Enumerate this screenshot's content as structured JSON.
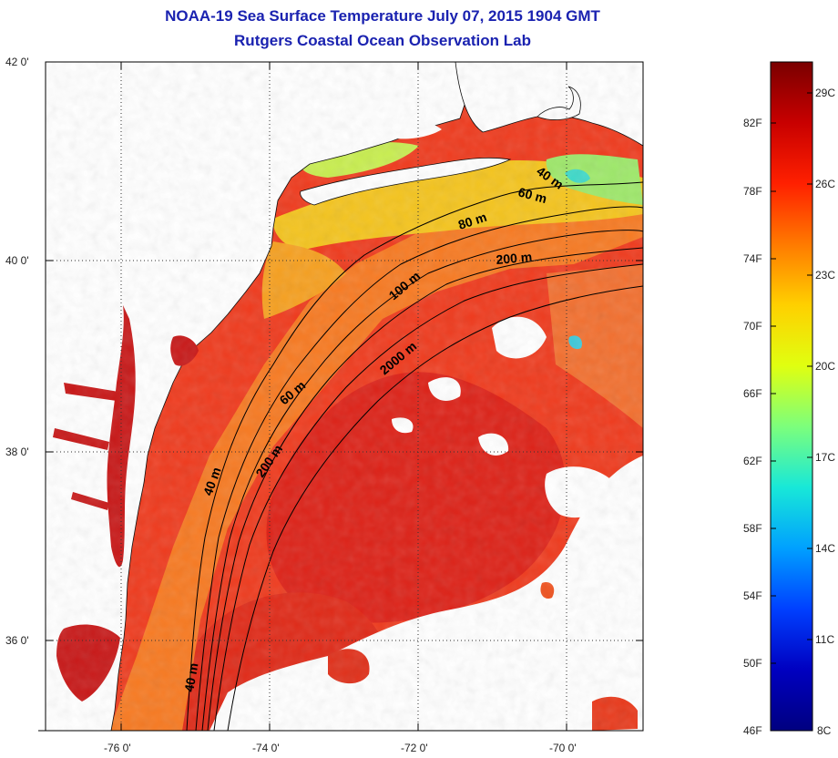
{
  "title_line1": "NOAA-19 Sea Surface Temperature July 07, 2015 1904 GMT",
  "title_line2": "Rutgers Coastal Ocean Observation Lab",
  "lat_labels": [
    "42 0'",
    "40 0'",
    "38 0'",
    "36 0'"
  ],
  "lon_labels": [
    "-76 0'",
    "-74 0'",
    "-72 0'",
    "-70 0'"
  ],
  "isobath_labels": [
    "40 m",
    "60 m",
    "80 m",
    "200 m",
    "100 m",
    "2000 m",
    "60 m",
    "40 m",
    "200 m",
    "40 m"
  ],
  "colorbar": {
    "fahrenheit": [
      "82F",
      "78F",
      "74F",
      "70F",
      "66F",
      "62F",
      "58F",
      "54F",
      "50F",
      "46F"
    ],
    "celsius": [
      "29C",
      "26C",
      "23C",
      "20C",
      "17C",
      "14C",
      "11C",
      "8C"
    ],
    "colors": [
      "#7a0000",
      "#c80000",
      "#ff2000",
      "#ff7a00",
      "#ffd000",
      "#e0ff10",
      "#7cff7c",
      "#18e8d8",
      "#00a0ff",
      "#0040ff",
      "#0000c0",
      "#000080"
    ]
  },
  "map_colors": {
    "land": "#ffffff",
    "warm_core": "#e0241a",
    "ocean_red": "#ef3b1e",
    "shelf_orange": "#f77a22",
    "cool_yellow": "#f4c41e",
    "cold_green": "#9ee86a",
    "bay_red": "#c81818"
  }
}
